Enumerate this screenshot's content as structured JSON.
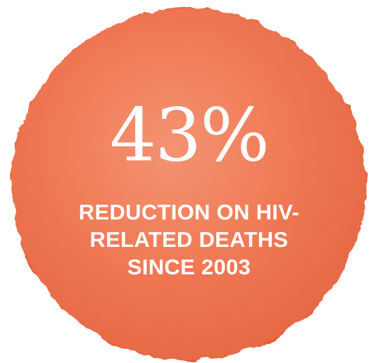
{
  "stat": {
    "value": "43%",
    "caption_lines": [
      "REDUCTION ON HIV-",
      "RELATED DEATHS",
      "SINCE 2003"
    ]
  },
  "colors": {
    "circle": "#EE6C45",
    "circle_dark": "#E45E36",
    "circle_light": "#F38A66",
    "text": "#FFFFFF"
  }
}
